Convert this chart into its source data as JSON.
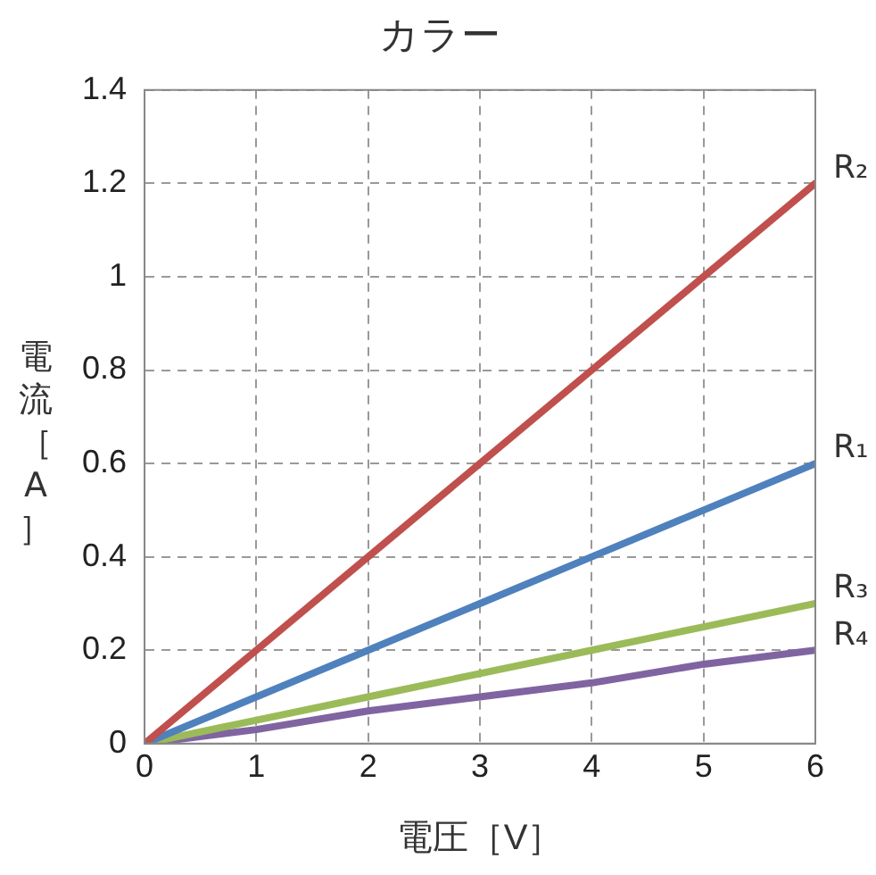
{
  "chart_data": {
    "type": "line",
    "title": "カラー",
    "xlabel": "電圧［V］",
    "ylabel": "電流［A］",
    "x": [
      0,
      1,
      2,
      3,
      4,
      5,
      6
    ],
    "series": [
      {
        "name": "R₂",
        "color": "#c0504d",
        "values": [
          0,
          0.2,
          0.4,
          0.6,
          0.8,
          1.0,
          1.2
        ]
      },
      {
        "name": "R₁",
        "color": "#4f81bd",
        "values": [
          0,
          0.1,
          0.2,
          0.3,
          0.4,
          0.5,
          0.6
        ]
      },
      {
        "name": "R₃",
        "color": "#9bbb59",
        "values": [
          0,
          0.05,
          0.1,
          0.15,
          0.2,
          0.25,
          0.3
        ]
      },
      {
        "name": "R₄",
        "color": "#8064a2",
        "values": [
          0,
          0.03,
          0.07,
          0.1,
          0.13,
          0.17,
          0.2
        ]
      }
    ],
    "xlim": [
      0,
      6
    ],
    "xticks": [
      0,
      1,
      2,
      3,
      4,
      5,
      6
    ],
    "ylim": [
      0,
      1.4
    ],
    "yticks": [
      0,
      0.2,
      0.4,
      0.6,
      0.8,
      1,
      1.2,
      1.4
    ],
    "grid": true,
    "marker": "none",
    "line_style": "solid"
  }
}
